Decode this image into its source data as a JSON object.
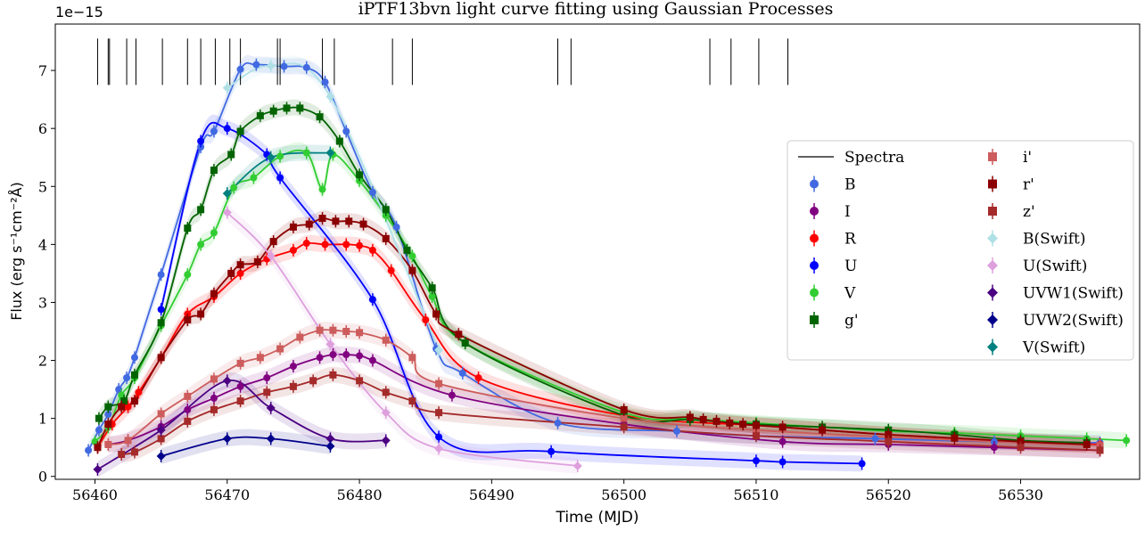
{
  "chart_data": {
    "type": "scatter",
    "title": "iPTF13bvn light curve fitting using Gaussian Processes",
    "xlabel": "Time (MJD)",
    "ylabel": "Flux (erg s⁻¹cm⁻²Å)",
    "offset_text": "1e−15",
    "xlim": [
      56457,
      56539
    ],
    "ylim": [
      -0.05,
      7.8
    ],
    "xticks": [
      56460,
      56470,
      56480,
      56490,
      56500,
      56510,
      56520,
      56530
    ],
    "yticks": [
      0,
      1,
      2,
      3,
      4,
      5,
      6,
      7
    ],
    "grid": false,
    "legend_position": "right",
    "spectra_label": "Spectra",
    "spectra_epochs": [
      56460.2,
      56461.0,
      56461.1,
      56462.4,
      56463.1,
      56465.1,
      56467.0,
      56468.0,
      56469.1,
      56470.2,
      56471.0,
      56473.8,
      56474.0,
      56477.2,
      56478.1,
      56482.5,
      56484.0,
      56495.0,
      56496.0,
      56506.5,
      56508.1,
      56510.2,
      56512.4
    ],
    "series": [
      {
        "name": "B",
        "color": "#4169e1",
        "marker": "circle",
        "x": [
          56459.5,
          56460.3,
          56461.0,
          56461.8,
          56462.4,
          56463.0,
          56465.0,
          56468.0,
          56469.0,
          56471.0,
          56472.2,
          56474.3,
          56476.0,
          56477.4,
          56479.0,
          56481.0,
          56482.8,
          56485.8,
          56487.8,
          56495.0,
          56504.0,
          56510.0,
          56519.0,
          56528.0,
          56536.0
        ],
        "y": [
          0.45,
          0.8,
          1.07,
          1.5,
          1.7,
          2.05,
          3.48,
          5.68,
          5.95,
          7.02,
          7.1,
          7.07,
          7.05,
          6.8,
          5.95,
          4.9,
          4.3,
          2.2,
          1.78,
          0.92,
          0.78,
          0.7,
          0.65,
          0.6,
          0.58
        ]
      },
      {
        "name": "I",
        "color": "#800080",
        "marker": "circle",
        "x": [
          56461.0,
          56462.5,
          56465.0,
          56467.0,
          56469.0,
          56471.0,
          56473.0,
          56475.0,
          56477.0,
          56478.0,
          56479.0,
          56480.0,
          56481.0,
          56487.0,
          56500.0,
          56512.0,
          56520.0,
          56528.0,
          56536.0
        ],
        "y": [
          0.55,
          0.62,
          0.86,
          1.15,
          1.35,
          1.55,
          1.7,
          1.9,
          2.05,
          2.1,
          2.1,
          2.08,
          2.0,
          1.4,
          0.9,
          0.6,
          0.55,
          0.5,
          0.45
        ]
      },
      {
        "name": "R",
        "color": "#ff0000",
        "marker": "circle",
        "x": [
          56460.2,
          56461.3,
          56462.5,
          56463.3,
          56465.0,
          56467.0,
          56469.0,
          56471.0,
          56473.0,
          56475.0,
          56476.0,
          56477.4,
          56479.0,
          56480.0,
          56481.0,
          56482.4,
          56485.0,
          56489.0,
          56500.0,
          56510.0,
          56520.0,
          56530.0,
          56536.0
        ],
        "y": [
          0.5,
          0.9,
          1.2,
          1.45,
          2.05,
          2.8,
          3.1,
          3.5,
          3.75,
          3.9,
          4.02,
          4.0,
          4.0,
          3.98,
          3.9,
          3.55,
          2.7,
          1.7,
          1.05,
          0.88,
          0.72,
          0.6,
          0.55
        ]
      },
      {
        "name": "U",
        "color": "#0000ff",
        "marker": "circle",
        "x": [
          56465.0,
          56468.0,
          56470.0,
          56473.0,
          56474.0,
          56481.0,
          56486.0,
          56494.5,
          56510.0,
          56512.0,
          56518.0
        ],
        "y": [
          2.88,
          5.78,
          6.0,
          5.55,
          5.15,
          3.05,
          0.68,
          0.43,
          0.27,
          0.25,
          0.22
        ]
      },
      {
        "name": "V",
        "color": "#32cd32",
        "marker": "circle",
        "x": [
          56460.0,
          56461.0,
          56462.0,
          56463.0,
          56465.0,
          56467.0,
          56468.0,
          56469.0,
          56470.5,
          56472.0,
          56474.0,
          56476.0,
          56477.2,
          56478.0,
          56480.0,
          56482.0,
          56484.0,
          56485.5,
          56488.0,
          56500.0,
          56505.0,
          56510.0,
          56515.0,
          56520.0,
          56525.0,
          56530.0,
          56535.0,
          56538.0
        ],
        "y": [
          0.6,
          0.85,
          1.4,
          1.7,
          2.6,
          3.48,
          4.0,
          4.2,
          4.98,
          5.15,
          5.52,
          5.58,
          4.95,
          5.55,
          5.1,
          4.5,
          3.8,
          3.1,
          2.3,
          1.1,
          1.0,
          0.92,
          0.85,
          0.78,
          0.75,
          0.7,
          0.65,
          0.62
        ]
      },
      {
        "name": "g'",
        "color": "#006400",
        "marker": "square",
        "x": [
          56460.3,
          56461.0,
          56462.2,
          56463.0,
          56465.0,
          56467.0,
          56468.0,
          56469.0,
          56470.3,
          56471.0,
          56472.5,
          56473.5,
          56474.5,
          56475.5,
          56477.0,
          56478.5,
          56480.0,
          56482.0,
          56483.6,
          56485.5,
          56488.0,
          56500.0,
          56505.0,
          56510.0,
          56515.0,
          56520.0,
          56525.0,
          56530.0,
          56535.0
        ],
        "y": [
          1.0,
          1.2,
          1.3,
          1.75,
          2.65,
          4.28,
          4.6,
          5.28,
          5.55,
          5.95,
          6.22,
          6.3,
          6.35,
          6.35,
          6.2,
          5.78,
          5.2,
          4.6,
          3.9,
          3.25,
          2.3,
          1.05,
          0.98,
          0.9,
          0.85,
          0.8,
          0.72,
          0.62,
          0.58
        ]
      },
      {
        "name": "i'",
        "color": "#cd5c5c",
        "marker": "square",
        "x": [
          56461.0,
          56462.5,
          56465.0,
          56467.0,
          56469.0,
          56471.0,
          56472.5,
          56474.0,
          56475.5,
          56477.0,
          56478.0,
          56479.0,
          56480.0,
          56482.0,
          56484.0,
          56486.0,
          56500.0,
          56510.0,
          56520.0,
          56530.0,
          56536.0
        ],
        "y": [
          0.55,
          0.62,
          1.08,
          1.38,
          1.68,
          1.95,
          2.05,
          2.2,
          2.4,
          2.52,
          2.52,
          2.5,
          2.48,
          2.35,
          2.05,
          1.6,
          1.0,
          0.8,
          0.68,
          0.58,
          0.53
        ]
      },
      {
        "name": "r'",
        "color": "#8b0000",
        "marker": "square",
        "x": [
          56460.2,
          56461.0,
          56462.0,
          56463.0,
          56465.0,
          56467.0,
          56468.0,
          56469.0,
          56470.3,
          56471.0,
          56472.3,
          56473.5,
          56475.0,
          56476.2,
          56477.2,
          56478.2,
          56479.2,
          56480.3,
          56482.0,
          56484.0,
          56485.8,
          56487.5,
          56500.0,
          56505.0,
          56506.0,
          56507.0,
          56508.0,
          56509.0,
          56510.0,
          56512.0,
          56515.0,
          56520.0,
          56525.0,
          56530.0,
          56535.0
        ],
        "y": [
          0.5,
          0.9,
          1.2,
          1.3,
          2.05,
          2.7,
          2.8,
          3.15,
          3.5,
          3.65,
          3.7,
          4.05,
          4.3,
          4.35,
          4.45,
          4.4,
          4.4,
          4.35,
          4.1,
          3.55,
          2.8,
          2.45,
          1.15,
          1.02,
          0.98,
          0.95,
          0.92,
          0.9,
          0.88,
          0.85,
          0.8,
          0.72,
          0.66,
          0.6,
          0.55
        ]
      },
      {
        "name": "z'",
        "color": "#a52a2a",
        "marker": "square",
        "x": [
          56462.0,
          56463.0,
          56465.0,
          56467.0,
          56469.0,
          56471.0,
          56473.0,
          56475.0,
          56476.5,
          56478.0,
          56480.0,
          56482.0,
          56484.0,
          56486.0,
          56500.0,
          56510.0,
          56520.0,
          56530.0,
          56536.0
        ],
        "y": [
          0.38,
          0.42,
          0.65,
          0.95,
          1.15,
          1.3,
          1.45,
          1.55,
          1.65,
          1.75,
          1.65,
          1.45,
          1.3,
          1.1,
          0.85,
          0.7,
          0.6,
          0.5,
          0.45
        ]
      },
      {
        "name": "B(Swift)",
        "color": "#afe0e6",
        "marker": "diamond",
        "x": [
          56470.0,
          56473.3,
          56477.8,
          56486.0
        ],
        "y": [
          6.7,
          7.08,
          6.55,
          2.18
        ]
      },
      {
        "name": "U(Swift)",
        "color": "#dda0dd",
        "marker": "diamond",
        "x": [
          56470.0,
          56473.3,
          56477.8,
          56482.0,
          56486.0,
          56496.5
        ],
        "y": [
          4.55,
          3.8,
          2.28,
          1.1,
          0.48,
          0.18
        ]
      },
      {
        "name": "UVW1(Swift)",
        "color": "#4b0082",
        "marker": "diamond",
        "x": [
          56460.2,
          56465.0,
          56470.0,
          56473.3,
          56477.8,
          56482.0
        ],
        "y": [
          0.12,
          0.8,
          1.65,
          1.18,
          0.65,
          0.62
        ]
      },
      {
        "name": "UVW2(Swift)",
        "color": "#00008b",
        "marker": "diamond",
        "x": [
          56465.0,
          56470.0,
          56473.3,
          56477.8
        ],
        "y": [
          0.35,
          0.65,
          0.65,
          0.52
        ]
      },
      {
        "name": "V(Swift)",
        "color": "#008080",
        "marker": "diamond",
        "x": [
          56470.0,
          56473.3,
          56477.8
        ],
        "y": [
          4.88,
          5.5,
          5.58
        ]
      }
    ]
  }
}
